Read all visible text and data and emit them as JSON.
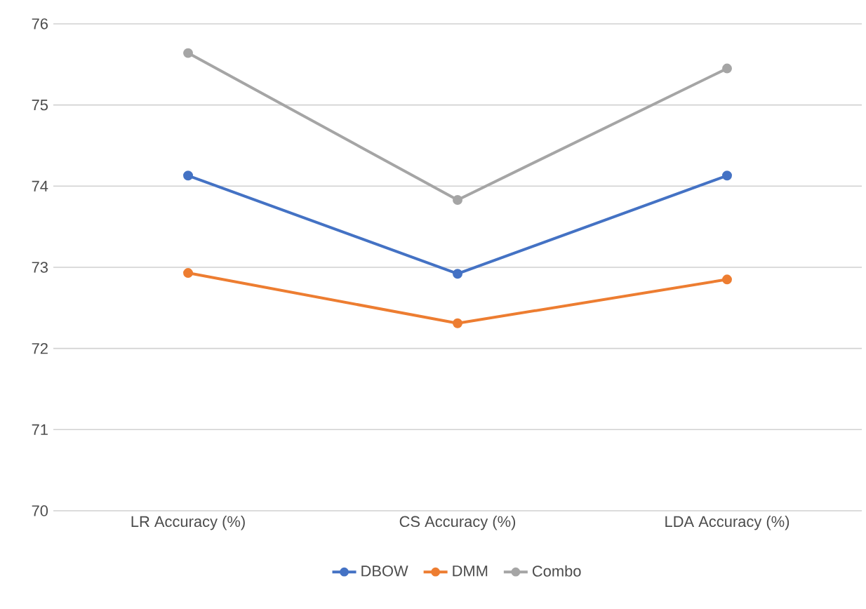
{
  "chart_data": {
    "type": "line",
    "categories": [
      "LR Accuracy (%)",
      "CS Accuracy (%)",
      "LDA Accuracy (%)"
    ],
    "series": [
      {
        "name": "DBOW",
        "color": "#4472c4",
        "values": [
          74.13,
          72.92,
          74.13
        ]
      },
      {
        "name": "DMM",
        "color": "#ed7d31",
        "values": [
          72.93,
          72.31,
          72.85
        ]
      },
      {
        "name": "Combo",
        "color": "#a5a5a5",
        "values": [
          75.64,
          73.83,
          75.45
        ]
      }
    ],
    "ylim": [
      70,
      76
    ],
    "yticks": [
      70,
      71,
      72,
      73,
      74,
      75,
      76
    ],
    "grid": "y",
    "legend": "bottom",
    "marker": "circle",
    "line_style": "solid"
  }
}
